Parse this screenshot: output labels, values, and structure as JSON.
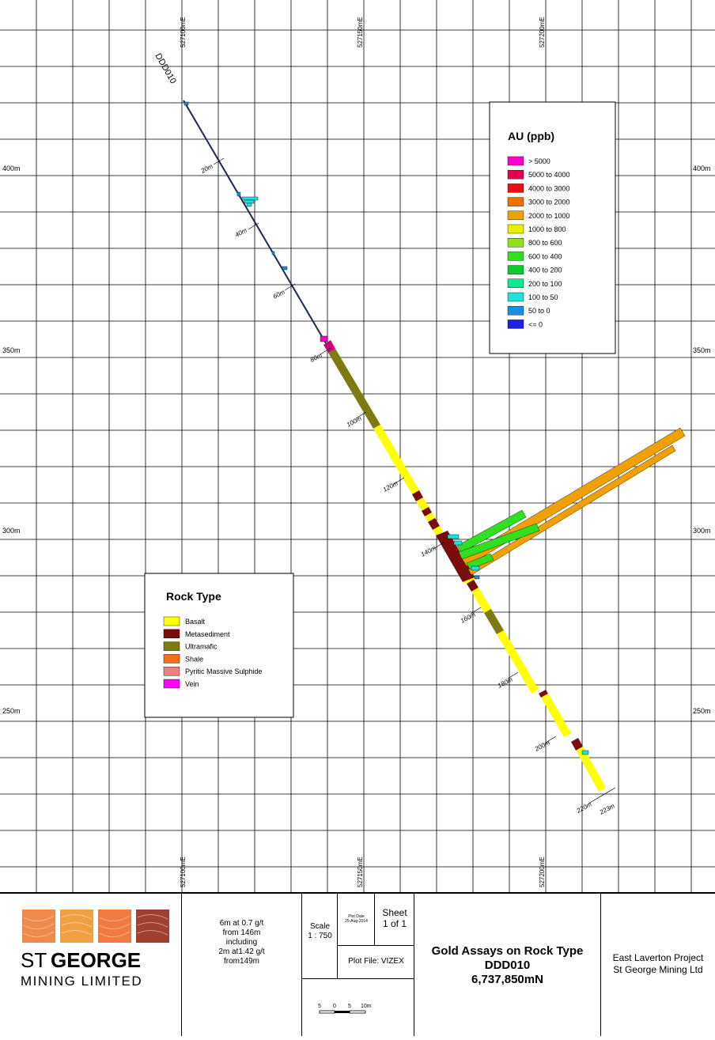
{
  "drillhole": {
    "name": "DDD010",
    "depth_labels": [
      "20m",
      "40m",
      "60m",
      "80m",
      "100m",
      "120m",
      "140m",
      "160m",
      "180m",
      "200m",
      "220m"
    ],
    "end_label": "223m"
  },
  "grid": {
    "easting_labels": [
      "527100mE",
      "527150mE",
      "527200mE"
    ],
    "rl_labels": [
      "400m",
      "350m",
      "300m",
      "250m"
    ]
  },
  "au_legend": {
    "title": "AU (ppb)",
    "items": [
      {
        "label": "> 5000",
        "color": "#ff00cc"
      },
      {
        "label": "5000 to 4000",
        "color": "#e8004c"
      },
      {
        "label": "4000 to 3000",
        "color": "#e81010"
      },
      {
        "label": "3000 to 2000",
        "color": "#f07000"
      },
      {
        "label": "2000 to 1000",
        "color": "#f0a000"
      },
      {
        "label": "1000 to 800",
        "color": "#e8f000"
      },
      {
        "label": "800 to 600",
        "color": "#90e020"
      },
      {
        "label": "600 to 400",
        "color": "#30e020"
      },
      {
        "label": "400 to 200",
        "color": "#10c830"
      },
      {
        "label": "200 to 100",
        "color": "#10e890"
      },
      {
        "label": "100 to 50",
        "color": "#20e0e0"
      },
      {
        "label": "50 to 0",
        "color": "#1890e0"
      },
      {
        "label": "<= 0",
        "color": "#2020e0"
      }
    ]
  },
  "rock_legend": {
    "title": "Rock Type",
    "items": [
      {
        "label": "Basalt",
        "color": "#ffff00"
      },
      {
        "label": "Metasediment",
        "color": "#7a0c0c"
      },
      {
        "label": "Ultramafic",
        "color": "#7d7a12"
      },
      {
        "label": "Shale",
        "color": "#ff6a1a"
      },
      {
        "label": "Pyritic Massive Sulphide",
        "color": "#f08080"
      },
      {
        "label": "Vein",
        "color": "#ff00ff"
      }
    ]
  },
  "title_block": {
    "logo_line1_a": "ST",
    "logo_line1_b": "GEORGE",
    "logo_line2": "MINING LIMITED",
    "intercept": [
      "6m at 0.7 g/t",
      "from 146m",
      "including",
      "2m at1.42 g/t",
      "from149m"
    ],
    "scale_label": "Scale",
    "scale_value": "1 : 750",
    "plot_date_label": "Plot Date",
    "plot_date_value": "25-Aug-2014",
    "sheet_label": "Sheet",
    "sheet_value": "1 of 1",
    "plot_file": "Plot File: VIZEX",
    "scalebar_labels": [
      "5",
      "0",
      "5",
      "10m"
    ],
    "title_line1": "Gold Assays on Rock Type",
    "title_line2": "DDD010",
    "title_line3": "6,737,850mN",
    "project_line1": "East Laverton Project",
    "project_line2": "St George Mining Ltd"
  }
}
